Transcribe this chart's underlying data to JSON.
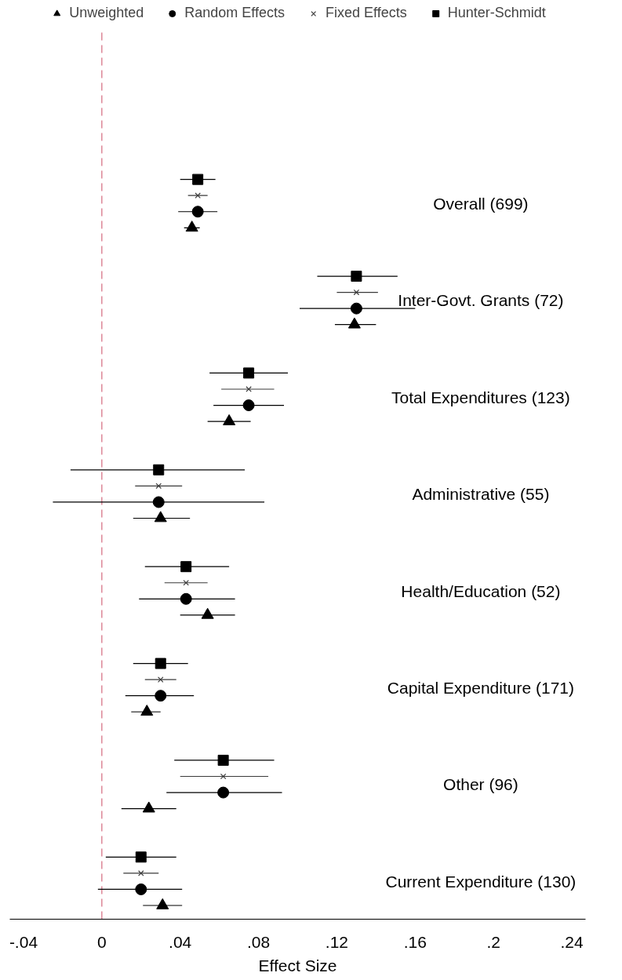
{
  "chart_data": {
    "type": "scatter",
    "orientation": "horizontal",
    "xlabel": "Effect Size",
    "categories": [
      "Overall (699)",
      "Inter-Govt. Grants (72)",
      "Total Expenditures (123)",
      "Administrative (55)",
      "Health/Education (52)",
      "Capital Expenditure (171)",
      "Other (96)",
      "Current Expenditure (130)"
    ],
    "series": [
      {
        "name": "Unweighted",
        "color": "#000000",
        "marker": "triangle",
        "values": [
          0.046,
          0.129,
          0.065,
          0.03,
          0.054,
          0.023,
          0.024,
          0.031
        ],
        "errors": [
          [
            0.042,
            0.05
          ],
          [
            0.119,
            0.14
          ],
          [
            0.054,
            0.076
          ],
          [
            0.016,
            0.045
          ],
          [
            0.04,
            0.068
          ],
          [
            0.015,
            0.03
          ],
          [
            0.01,
            0.038
          ],
          [
            0.021,
            0.041
          ]
        ]
      },
      {
        "name": "Random Effects",
        "color": "#000000",
        "marker": "circle",
        "values": [
          0.049,
          0.13,
          0.075,
          0.029,
          0.043,
          0.03,
          0.062,
          0.02
        ],
        "errors": [
          [
            0.039,
            0.059
          ],
          [
            0.101,
            0.16
          ],
          [
            0.057,
            0.093
          ],
          [
            -0.025,
            0.083
          ],
          [
            0.019,
            0.068
          ],
          [
            0.012,
            0.047
          ],
          [
            0.033,
            0.092
          ],
          [
            -0.002,
            0.041
          ]
        ]
      },
      {
        "name": "Fixed Effects",
        "color": "#3a3a3a",
        "marker": "cross",
        "values": [
          0.049,
          0.13,
          0.075,
          0.029,
          0.043,
          0.03,
          0.062,
          0.02
        ],
        "errors": [
          [
            0.044,
            0.054
          ],
          [
            0.12,
            0.141
          ],
          [
            0.061,
            0.088
          ],
          [
            0.017,
            0.041
          ],
          [
            0.032,
            0.054
          ],
          [
            0.022,
            0.038
          ],
          [
            0.04,
            0.085
          ],
          [
            0.011,
            0.029
          ]
        ]
      },
      {
        "name": "Hunter-Schmidt",
        "color": "#000000",
        "marker": "square",
        "values": [
          0.049,
          0.13,
          0.075,
          0.029,
          0.043,
          0.03,
          0.062,
          0.02
        ],
        "errors": [
          [
            0.04,
            0.058
          ],
          [
            0.11,
            0.151
          ],
          [
            0.055,
            0.095
          ],
          [
            -0.016,
            0.073
          ],
          [
            0.022,
            0.065
          ],
          [
            0.016,
            0.044
          ],
          [
            0.037,
            0.088
          ],
          [
            0.002,
            0.038
          ]
        ]
      }
    ],
    "xlim": [
      -0.047,
      0.247
    ],
    "xticks": [
      {
        "value": -0.04,
        "label": "-.04"
      },
      0,
      {
        "value": 0.04,
        "label": ".04"
      },
      {
        "value": 0.08,
        "label": ".08"
      },
      {
        "value": 0.12,
        "label": ".12"
      },
      {
        "value": 0.16,
        "label": ".16"
      },
      {
        "value": 0.2,
        "label": ".2"
      },
      {
        "value": 0.24,
        "label": ".24"
      }
    ],
    "ref_lines": [
      {
        "axis": "x",
        "value": 0,
        "color": "#d4687d",
        "line_style": "dashed"
      }
    ],
    "legend": "top"
  }
}
